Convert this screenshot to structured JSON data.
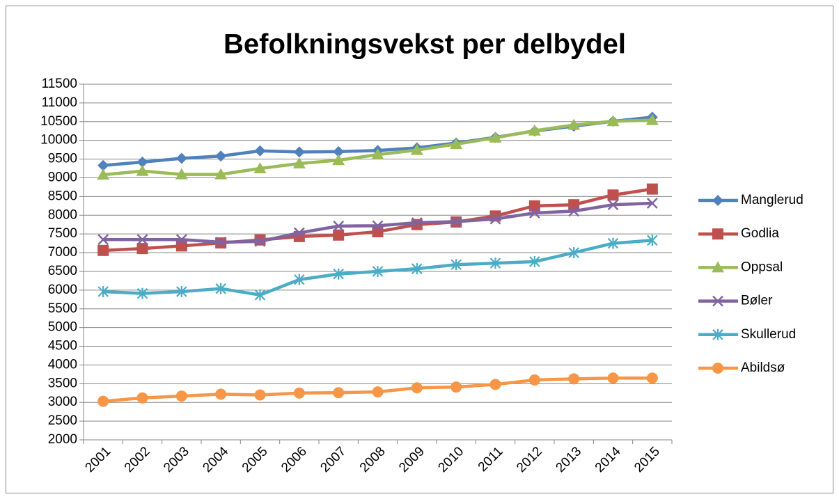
{
  "chart_data": {
    "type": "line",
    "title": "Befolkningsvekst per delbydel",
    "categories": [
      "2001",
      "2002",
      "2003",
      "2004",
      "2005",
      "2006",
      "2007",
      "2008",
      "2009",
      "2010",
      "2011",
      "2012",
      "2013",
      "2014",
      "2015"
    ],
    "series": [
      {
        "name": "Manglerud",
        "color": "#4f81bd",
        "marker": "diamond",
        "values": [
          9330,
          9420,
          9520,
          9580,
          9720,
          9690,
          9700,
          9730,
          9800,
          9930,
          10080,
          10250,
          10380,
          10510,
          10620
        ]
      },
      {
        "name": "Godlia",
        "color": "#c0504d",
        "marker": "square",
        "values": [
          7060,
          7110,
          7180,
          7260,
          7340,
          7430,
          7470,
          7560,
          7750,
          7820,
          7980,
          8250,
          8280,
          8540,
          8700
        ]
      },
      {
        "name": "Oppsal",
        "color": "#9bbb59",
        "marker": "triangle",
        "values": [
          9080,
          9180,
          9090,
          9090,
          9250,
          9380,
          9470,
          9620,
          9740,
          9900,
          10070,
          10260,
          10410,
          10510,
          10540
        ]
      },
      {
        "name": "Bøler",
        "color": "#8064a2",
        "marker": "x",
        "values": [
          7350,
          7350,
          7350,
          7280,
          7300,
          7530,
          7710,
          7720,
          7800,
          7830,
          7900,
          8060,
          8110,
          8280,
          8320
        ]
      },
      {
        "name": "Skullerud",
        "color": "#4bacc6",
        "marker": "star",
        "values": [
          5960,
          5910,
          5960,
          6040,
          5870,
          6280,
          6430,
          6500,
          6570,
          6680,
          6720,
          6760,
          7000,
          7250,
          7330
        ]
      },
      {
        "name": "Abildsø",
        "color": "#f79646",
        "marker": "circle",
        "values": [
          3030,
          3120,
          3170,
          3220,
          3200,
          3250,
          3260,
          3280,
          3390,
          3410,
          3480,
          3600,
          3630,
          3650,
          3650
        ]
      }
    ],
    "ylim": [
      2000,
      11500
    ],
    "yticks": [
      2000,
      2500,
      3000,
      3500,
      4000,
      4500,
      5000,
      5500,
      6000,
      6500,
      7000,
      7500,
      8000,
      8500,
      9000,
      9500,
      10000,
      10500,
      11000,
      11500
    ],
    "grid": true,
    "legend": "right"
  }
}
